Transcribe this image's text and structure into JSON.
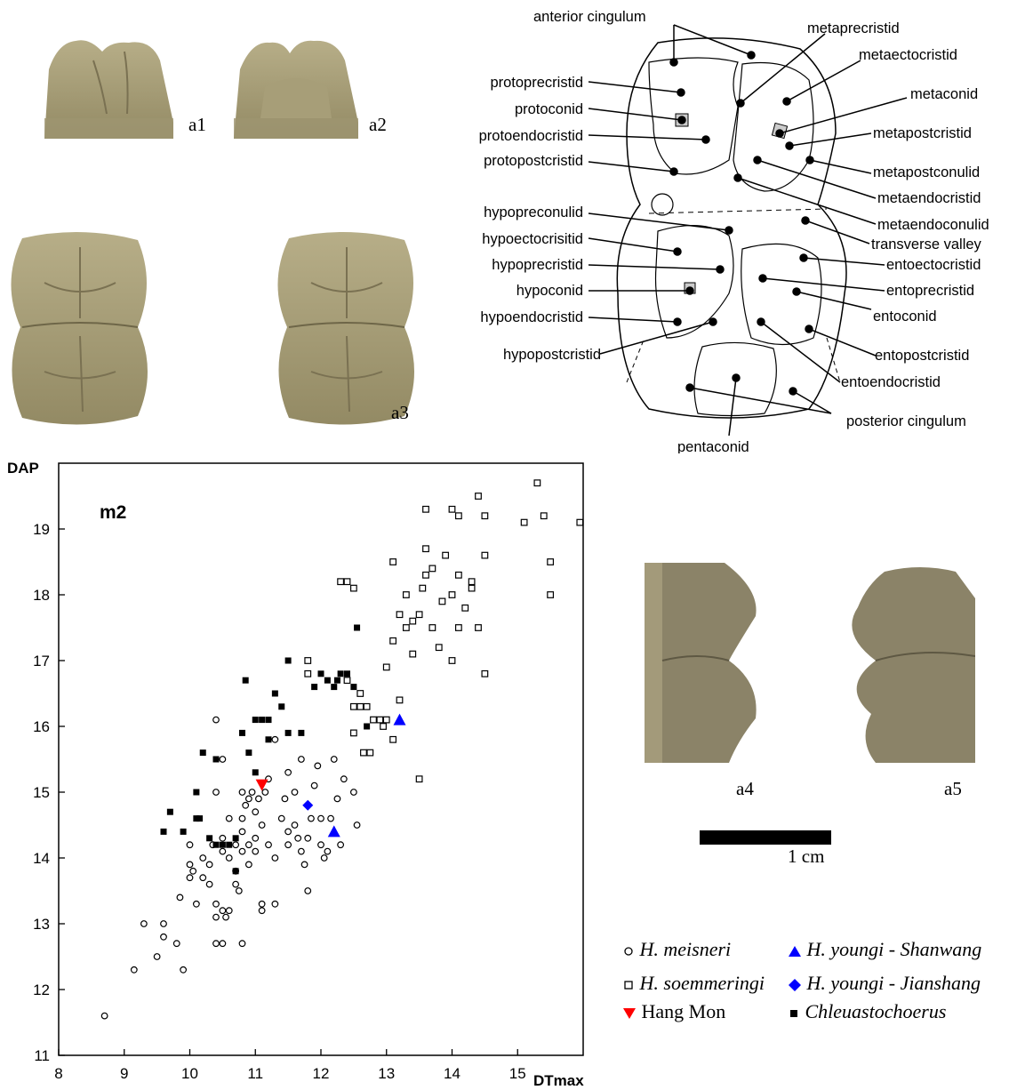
{
  "photos": {
    "a1": "a1",
    "a2": "a2",
    "a3": "a3",
    "a4": "a4",
    "a5": "a5"
  },
  "scale_bar": {
    "label": "1 cm"
  },
  "diagram": {
    "labels_left": [
      "protoprecristid",
      "protoconid",
      "protoendocristid",
      "protopostcristid",
      "hypopreconulid",
      "hypoectocrisitid",
      "hypoprecristid",
      "hypoconid",
      "hypoendocristid",
      "hypopostcristid"
    ],
    "labels_right": [
      "metaprecristid",
      "metaectocristid",
      "metaconid",
      "metapostcristid",
      "metapostconulid",
      "metaendocristid",
      "metaendoconulid",
      "transverse valley",
      "entoectocristid",
      "entoprecristid",
      "entoconid",
      "entopostcristid",
      "entoendocristid",
      "posterior cingulum"
    ],
    "label_top": "anterior cingulum",
    "label_bottom": "pentaconid"
  },
  "chart_data": {
    "type": "scatter",
    "title": "m2",
    "xlabel": "DTmax",
    "ylabel": "DAP",
    "xlim": [
      8,
      16
    ],
    "ylim": [
      11,
      20
    ],
    "x_ticks": [
      "8",
      "9",
      "10",
      "11",
      "12",
      "13",
      "14",
      "15"
    ],
    "y_ticks": [
      "11",
      "12",
      "13",
      "14",
      "15",
      "16",
      "17",
      "18",
      "19"
    ],
    "legend": {
      "meisneri": "H. meisneri",
      "soemmeringi": "H. soemmeringi",
      "hangmon": "Hang Mon",
      "shanwang": "H. youngi - Shanwang",
      "jianshang": "H. youngi - Jianshang",
      "chleuasto": "Chleuastochoerus"
    },
    "series": [
      {
        "name": "H. meisneri",
        "marker": "open-circle",
        "color": "#000000",
        "points": [
          [
            8.7,
            11.6
          ],
          [
            9.15,
            12.3
          ],
          [
            9.3,
            13.0
          ],
          [
            9.5,
            12.5
          ],
          [
            9.6,
            12.8
          ],
          [
            9.6,
            13.0
          ],
          [
            9.8,
            12.7
          ],
          [
            9.85,
            13.4
          ],
          [
            9.9,
            12.3
          ],
          [
            10.0,
            13.7
          ],
          [
            10.0,
            13.9
          ],
          [
            10.0,
            14.2
          ],
          [
            10.05,
            13.8
          ],
          [
            10.1,
            13.3
          ],
          [
            10.2,
            13.7
          ],
          [
            10.2,
            14.0
          ],
          [
            10.3,
            13.6
          ],
          [
            10.3,
            13.9
          ],
          [
            10.35,
            14.2
          ],
          [
            10.4,
            13.3
          ],
          [
            10.4,
            13.1
          ],
          [
            10.4,
            12.7
          ],
          [
            10.4,
            15.0
          ],
          [
            10.4,
            16.1
          ],
          [
            10.5,
            12.7
          ],
          [
            10.5,
            13.2
          ],
          [
            10.5,
            14.1
          ],
          [
            10.5,
            14.3
          ],
          [
            10.5,
            15.5
          ],
          [
            10.55,
            13.1
          ],
          [
            10.6,
            13.2
          ],
          [
            10.6,
            14.0
          ],
          [
            10.6,
            14.6
          ],
          [
            10.7,
            13.6
          ],
          [
            10.7,
            13.8
          ],
          [
            10.7,
            14.2
          ],
          [
            10.75,
            13.5
          ],
          [
            10.8,
            12.7
          ],
          [
            10.8,
            14.1
          ],
          [
            10.8,
            14.4
          ],
          [
            10.8,
            14.6
          ],
          [
            10.8,
            15.0
          ],
          [
            10.85,
            14.8
          ],
          [
            10.9,
            13.9
          ],
          [
            10.9,
            14.2
          ],
          [
            10.9,
            14.9
          ],
          [
            10.95,
            15.0
          ],
          [
            11.0,
            14.1
          ],
          [
            11.0,
            14.3
          ],
          [
            11.0,
            14.7
          ],
          [
            11.05,
            14.9
          ],
          [
            11.1,
            13.3
          ],
          [
            11.1,
            13.2
          ],
          [
            11.1,
            14.5
          ],
          [
            11.15,
            15.0
          ],
          [
            11.2,
            14.2
          ],
          [
            11.2,
            15.2
          ],
          [
            11.3,
            14.0
          ],
          [
            11.3,
            15.8
          ],
          [
            11.3,
            13.3
          ],
          [
            11.4,
            14.6
          ],
          [
            11.45,
            14.9
          ],
          [
            11.5,
            14.4
          ],
          [
            11.5,
            14.2
          ],
          [
            11.5,
            15.3
          ],
          [
            11.6,
            14.5
          ],
          [
            11.6,
            15.0
          ],
          [
            11.65,
            14.3
          ],
          [
            11.7,
            15.5
          ],
          [
            11.7,
            14.1
          ],
          [
            11.75,
            13.9
          ],
          [
            11.8,
            13.5
          ],
          [
            11.8,
            14.3
          ],
          [
            11.85,
            14.6
          ],
          [
            11.9,
            15.1
          ],
          [
            11.95,
            15.4
          ],
          [
            12.0,
            14.2
          ],
          [
            12.0,
            14.6
          ],
          [
            12.05,
            14.0
          ],
          [
            12.1,
            14.1
          ],
          [
            12.15,
            14.6
          ],
          [
            12.2,
            15.5
          ],
          [
            12.25,
            14.9
          ],
          [
            12.3,
            14.2
          ],
          [
            12.35,
            15.2
          ],
          [
            12.5,
            15.0
          ],
          [
            12.55,
            14.5
          ]
        ]
      },
      {
        "name": "H. soemmeringi",
        "marker": "open-square",
        "color": "#000000",
        "points": [
          [
            11.8,
            17.0
          ],
          [
            11.8,
            16.8
          ],
          [
            12.3,
            18.2
          ],
          [
            12.4,
            18.2
          ],
          [
            12.4,
            16.7
          ],
          [
            12.5,
            16.3
          ],
          [
            12.5,
            15.9
          ],
          [
            12.5,
            18.1
          ],
          [
            12.6,
            16.5
          ],
          [
            12.6,
            16.3
          ],
          [
            12.65,
            15.6
          ],
          [
            12.7,
            16.3
          ],
          [
            12.75,
            15.6
          ],
          [
            12.8,
            16.1
          ],
          [
            12.9,
            16.1
          ],
          [
            12.95,
            16.0
          ],
          [
            13.0,
            16.1
          ],
          [
            13.0,
            16.9
          ],
          [
            13.1,
            15.8
          ],
          [
            13.1,
            17.3
          ],
          [
            13.1,
            18.5
          ],
          [
            13.2,
            16.4
          ],
          [
            13.2,
            17.7
          ],
          [
            13.3,
            18.0
          ],
          [
            13.3,
            17.5
          ],
          [
            13.4,
            17.6
          ],
          [
            13.4,
            17.1
          ],
          [
            13.5,
            17.7
          ],
          [
            13.5,
            15.2
          ],
          [
            13.55,
            18.1
          ],
          [
            13.6,
            18.3
          ],
          [
            13.6,
            19.3
          ],
          [
            13.6,
            18.7
          ],
          [
            13.7,
            17.5
          ],
          [
            13.7,
            18.4
          ],
          [
            13.8,
            17.2
          ],
          [
            13.85,
            17.9
          ],
          [
            13.9,
            18.6
          ],
          [
            14.0,
            19.3
          ],
          [
            14.0,
            18.0
          ],
          [
            14.0,
            17.0
          ],
          [
            14.1,
            19.2
          ],
          [
            14.1,
            18.3
          ],
          [
            14.1,
            17.5
          ],
          [
            14.2,
            17.8
          ],
          [
            14.3,
            18.2
          ],
          [
            14.3,
            18.1
          ],
          [
            14.4,
            19.5
          ],
          [
            14.4,
            17.5
          ],
          [
            14.5,
            18.6
          ],
          [
            14.5,
            19.2
          ],
          [
            14.5,
            16.8
          ],
          [
            15.1,
            19.1
          ],
          [
            15.3,
            19.7
          ],
          [
            15.4,
            19.2
          ],
          [
            15.5,
            18.5
          ],
          [
            15.5,
            18.0
          ],
          [
            15.95,
            19.1
          ]
        ]
      },
      {
        "name": "Chleuastochoerus",
        "marker": "filled-square",
        "color": "#000000",
        "points": [
          [
            9.6,
            14.4
          ],
          [
            9.7,
            14.7
          ],
          [
            9.9,
            14.4
          ],
          [
            10.1,
            14.6
          ],
          [
            10.1,
            15.0
          ],
          [
            10.15,
            14.6
          ],
          [
            10.2,
            15.6
          ],
          [
            10.3,
            14.3
          ],
          [
            10.4,
            15.5
          ],
          [
            10.4,
            14.2
          ],
          [
            10.5,
            14.2
          ],
          [
            10.6,
            14.2
          ],
          [
            10.7,
            14.3
          ],
          [
            10.7,
            13.8
          ],
          [
            10.8,
            15.9
          ],
          [
            10.85,
            16.7
          ],
          [
            10.9,
            15.6
          ],
          [
            11.0,
            16.1
          ],
          [
            11.0,
            15.3
          ],
          [
            11.1,
            16.1
          ],
          [
            11.2,
            16.1
          ],
          [
            11.2,
            15.8
          ],
          [
            11.3,
            16.5
          ],
          [
            11.4,
            16.3
          ],
          [
            11.5,
            17.0
          ],
          [
            11.5,
            15.9
          ],
          [
            11.7,
            15.9
          ],
          [
            11.9,
            16.6
          ],
          [
            12.0,
            16.8
          ],
          [
            12.1,
            16.7
          ],
          [
            12.2,
            16.6
          ],
          [
            12.25,
            16.7
          ],
          [
            12.3,
            16.8
          ],
          [
            12.4,
            16.8
          ],
          [
            12.5,
            16.6
          ],
          [
            12.55,
            17.5
          ],
          [
            12.7,
            16.0
          ]
        ]
      },
      {
        "name": "Hang Mon",
        "marker": "down-triangle",
        "color": "#ff0000",
        "points": [
          [
            11.1,
            15.1
          ]
        ]
      },
      {
        "name": "H. youngi - Shanwang",
        "marker": "up-triangle",
        "color": "#0000ff",
        "points": [
          [
            12.2,
            14.4
          ],
          [
            13.2,
            16.1
          ]
        ]
      },
      {
        "name": "H. youngi - Jianshang",
        "marker": "diamond",
        "color": "#0000ff",
        "points": [
          [
            11.8,
            14.8
          ]
        ]
      }
    ]
  }
}
